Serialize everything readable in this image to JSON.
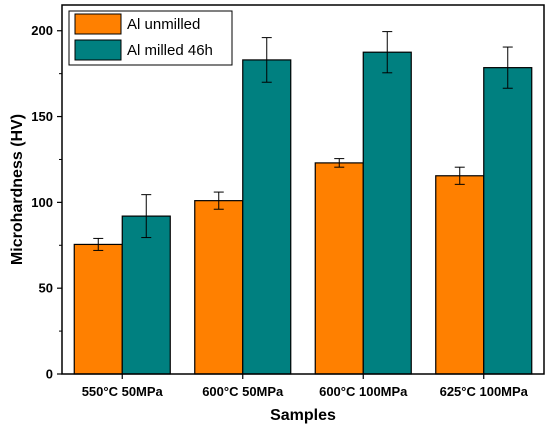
{
  "chart_data": {
    "type": "bar",
    "categories": [
      "550°C 50MPa",
      "600°C 50MPa",
      "600°C 100MPa",
      "625°C 100MPa"
    ],
    "series": [
      {
        "name": "Al unmilled",
        "color": "#ff8000",
        "values": [
          75.5,
          101,
          123,
          115.5
        ],
        "errors": [
          3.5,
          5,
          2.5,
          5
        ]
      },
      {
        "name": "Al milled 46h",
        "color": "#008080",
        "values": [
          92,
          183,
          187.5,
          178.5
        ],
        "errors": [
          12.5,
          13,
          12,
          12
        ]
      }
    ],
    "xlabel": "Samples",
    "ylabel": "Microhardness (HV)",
    "ylim": [
      0,
      215
    ],
    "yticks": [
      0,
      50,
      100,
      150,
      200
    ],
    "grid": false,
    "legend_position": "top-left"
  }
}
